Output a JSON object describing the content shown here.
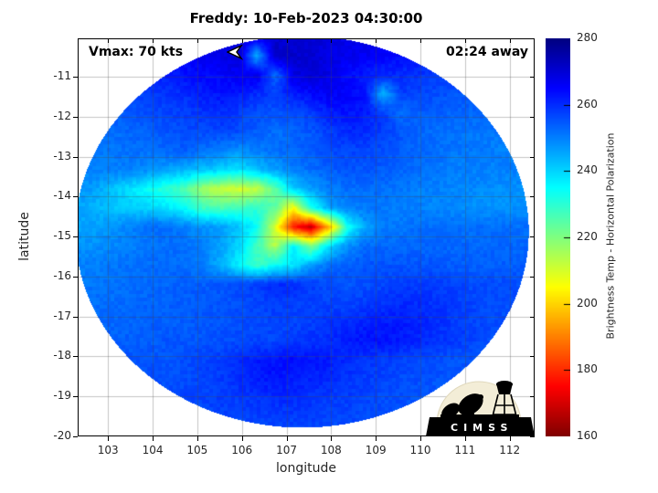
{
  "title": "Freddy: 10-Feb-2023 04:30:00",
  "annotations": {
    "vmax": "Vmax: 70 kts",
    "eta": "02:24 away"
  },
  "axes": {
    "xlabel": "longitude",
    "ylabel": "latitude",
    "xticks": [
      103,
      104,
      105,
      106,
      107,
      108,
      109,
      110,
      111,
      112
    ],
    "yticks": [
      -11,
      -12,
      -13,
      -14,
      -15,
      -16,
      -17,
      -18,
      -19,
      -20
    ]
  },
  "colorbar": {
    "label": "Brightness Temp - Horizontal Polarization",
    "ticks": [
      160,
      180,
      200,
      220,
      240,
      260,
      280
    ],
    "min": 160,
    "max": 280
  },
  "logo": {
    "text": "CIMSS"
  },
  "colors": {
    "background": "#ffffff",
    "title_text": "#000000",
    "tick_text": "#262626",
    "grid_line": "rgba(70,70,70,0.32)",
    "axis_box": "#000000"
  },
  "chart_data": {
    "type": "heatmap",
    "title": "Freddy: 10-Feb-2023 04:30:00",
    "xlabel": "longitude",
    "ylabel": "latitude",
    "colorbar_label": "Brightness Temp - Horizontal Polarization",
    "colormap": "jet-reversed (280 K dark blue -> 160 K dark red)",
    "temp_range": [
      160,
      280
    ],
    "axes": {
      "xlim": [
        102.32,
        112.56
      ],
      "ylim": [
        -20.0,
        -10.04
      ],
      "grid": true
    },
    "annotations": [
      {
        "text": "Vmax: 70 kts",
        "pos": "top-left-inside"
      },
      {
        "text": "02:24 away",
        "pos": "top-right-inside"
      }
    ],
    "disc": {
      "center_lon": 107.35,
      "center_lat": -14.88,
      "radius_lon_deg": 5.08,
      "radius_lat_deg": 4.9
    },
    "grid": {
      "lon_start": 102.3,
      "lon_step": 0.404,
      "lat_start": -10.0,
      "lat_step": -0.476,
      "units": "K",
      "values": [
        [
          266,
          266,
          266,
          266,
          266,
          266,
          267,
          268,
          268,
          269,
          270,
          270,
          270,
          270,
          269,
          268,
          268,
          267,
          266,
          266,
          265,
          265,
          264,
          264,
          264,
          264
        ],
        [
          264,
          264,
          264,
          264,
          264,
          265,
          266,
          267,
          268,
          270,
          244,
          272,
          271,
          270,
          268,
          267,
          266,
          265,
          264,
          263,
          262,
          262,
          261,
          261,
          261,
          261
        ],
        [
          260,
          260,
          260,
          260,
          261,
          262,
          263,
          264,
          265,
          266,
          268,
          252,
          268,
          270,
          268,
          264,
          262,
          261,
          260,
          259,
          258,
          258,
          257,
          257,
          257,
          257
        ],
        [
          256,
          256,
          256,
          257,
          258,
          259,
          260,
          262,
          263,
          262,
          260,
          258,
          262,
          264,
          266,
          265,
          263,
          244,
          258,
          257,
          256,
          255,
          255,
          254,
          254,
          254
        ],
        [
          254,
          254,
          254,
          255,
          256,
          257,
          258,
          259,
          260,
          258,
          256,
          255,
          256,
          258,
          262,
          263,
          262,
          258,
          252,
          254,
          254,
          253,
          253,
          253,
          253,
          253
        ],
        [
          252,
          252,
          252,
          253,
          254,
          255,
          256,
          256,
          257,
          256,
          254,
          252,
          253,
          255,
          258,
          260,
          260,
          258,
          255,
          253,
          252,
          252,
          251,
          251,
          251,
          251
        ],
        [
          251,
          251,
          251,
          252,
          252,
          253,
          254,
          252,
          250,
          248,
          250,
          252,
          253,
          254,
          256,
          257,
          257,
          256,
          254,
          253,
          252,
          251,
          251,
          250,
          250,
          250
        ],
        [
          250,
          250,
          250,
          250,
          248,
          246,
          244,
          242,
          240,
          238,
          242,
          246,
          250,
          252,
          254,
          255,
          255,
          254,
          253,
          252,
          251,
          250,
          250,
          250,
          250,
          250
        ],
        [
          248,
          246,
          242,
          238,
          234,
          230,
          226,
          216,
          212,
          210,
          212,
          224,
          240,
          246,
          250,
          252,
          252,
          252,
          251,
          250,
          250,
          249,
          249,
          248,
          248,
          248
        ],
        [
          246,
          244,
          242,
          241,
          240,
          238,
          234,
          228,
          226,
          228,
          230,
          224,
          205,
          232,
          246,
          250,
          251,
          251,
          250,
          250,
          249,
          249,
          248,
          248,
          248,
          248
        ],
        [
          246,
          246,
          248,
          250,
          252,
          252,
          250,
          248,
          246,
          242,
          234,
          210,
          178,
          168,
          196,
          232,
          246,
          250,
          251,
          252,
          252,
          252,
          252,
          252,
          252,
          252
        ],
        [
          248,
          248,
          249,
          250,
          251,
          252,
          252,
          250,
          246,
          240,
          228,
          214,
          236,
          220,
          238,
          248,
          252,
          253,
          253,
          253,
          253,
          253,
          253,
          253,
          253,
          253
        ],
        [
          250,
          250,
          251,
          252,
          252,
          253,
          252,
          250,
          244,
          236,
          228,
          234,
          238,
          246,
          252,
          254,
          255,
          255,
          255,
          255,
          255,
          254,
          254,
          254,
          254,
          254
        ],
        [
          251,
          251,
          252,
          252,
          253,
          253,
          254,
          254,
          255,
          256,
          258,
          260,
          260,
          258,
          256,
          255,
          256,
          257,
          258,
          258,
          258,
          257,
          256,
          256,
          256,
          256
        ],
        [
          252,
          252,
          252,
          253,
          253,
          254,
          254,
          255,
          255,
          256,
          257,
          258,
          258,
          257,
          257,
          257,
          258,
          259,
          260,
          260,
          259,
          258,
          257,
          256,
          256,
          256
        ],
        [
          253,
          253,
          253,
          253,
          254,
          254,
          254,
          255,
          255,
          256,
          256,
          257,
          257,
          258,
          259,
          260,
          261,
          262,
          262,
          261,
          260,
          258,
          257,
          256,
          256,
          256
        ],
        [
          254,
          254,
          254,
          254,
          254,
          255,
          255,
          255,
          256,
          256,
          257,
          257,
          258,
          259,
          260,
          262,
          263,
          263,
          262,
          261,
          259,
          258,
          257,
          256,
          256,
          256
        ],
        [
          255,
          255,
          255,
          255,
          255,
          255,
          256,
          257,
          258,
          260,
          262,
          263,
          264,
          263,
          262,
          260,
          259,
          258,
          257,
          256,
          256,
          255,
          255,
          255,
          255,
          255
        ],
        [
          256,
          256,
          256,
          256,
          256,
          256,
          256,
          257,
          258,
          260,
          262,
          263,
          262,
          261,
          260,
          259,
          258,
          257,
          256,
          256,
          255,
          255,
          255,
          255,
          255,
          255
        ],
        [
          256,
          256,
          256,
          256,
          256,
          256,
          257,
          257,
          258,
          258,
          259,
          260,
          260,
          259,
          258,
          258,
          257,
          256,
          256,
          255,
          255,
          255,
          255,
          255,
          255,
          255
        ],
        [
          255,
          255,
          255,
          255,
          255,
          255,
          256,
          256,
          257,
          257,
          258,
          258,
          258,
          258,
          257,
          257,
          256,
          256,
          255,
          255,
          255,
          255,
          255,
          255,
          255,
          255
        ],
        [
          255,
          255,
          255,
          255,
          255,
          255,
          255,
          255,
          255,
          255,
          255,
          255,
          255,
          255,
          255,
          255,
          255,
          255,
          255,
          255,
          255,
          255,
          255,
          255,
          255,
          255
        ]
      ]
    }
  }
}
